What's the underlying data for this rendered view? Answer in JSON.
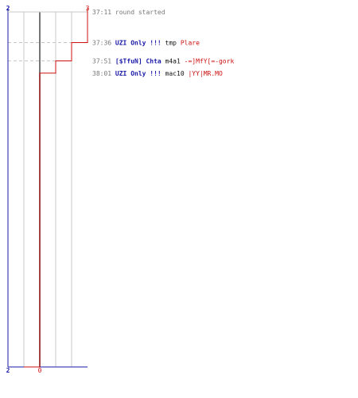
{
  "chart_data": {
    "type": "line",
    "title": "",
    "xlabel": "",
    "ylabel": "",
    "score_colors": {
      "blue": "#1a1aa8",
      "red": "#cc1111"
    },
    "blue_score_top": "2",
    "blue_score_bottom": "2",
    "red_score_top": "3",
    "red_score_bottom": "0",
    "x_range": [
      -2,
      3
    ],
    "time_range_seconds": [
      0,
      290
    ],
    "events": [
      {
        "time": "37:11",
        "t": 0,
        "text": "round started",
        "killer": "",
        "victim": "",
        "weapon": "",
        "value": 3,
        "dashed": false
      },
      {
        "time": "37:36",
        "t": 25,
        "killer": "UZI Only !!!",
        "weapon": "tmp",
        "victim": "Plare",
        "text": "",
        "value": 2,
        "dashed": true
      },
      {
        "time": "37:51",
        "t": 40,
        "killer": "[$TfuN] Chta",
        "weapon": "m4a1",
        "victim": "-=]MfY[=-gork",
        "text": "",
        "value": 1,
        "dashed": true
      },
      {
        "time": "38:01",
        "t": 50,
        "killer": "UZI Only !!!",
        "weapon": "mac10",
        "victim": "|YY|MR.MO",
        "text": "",
        "value": 0,
        "dashed": false
      }
    ]
  }
}
